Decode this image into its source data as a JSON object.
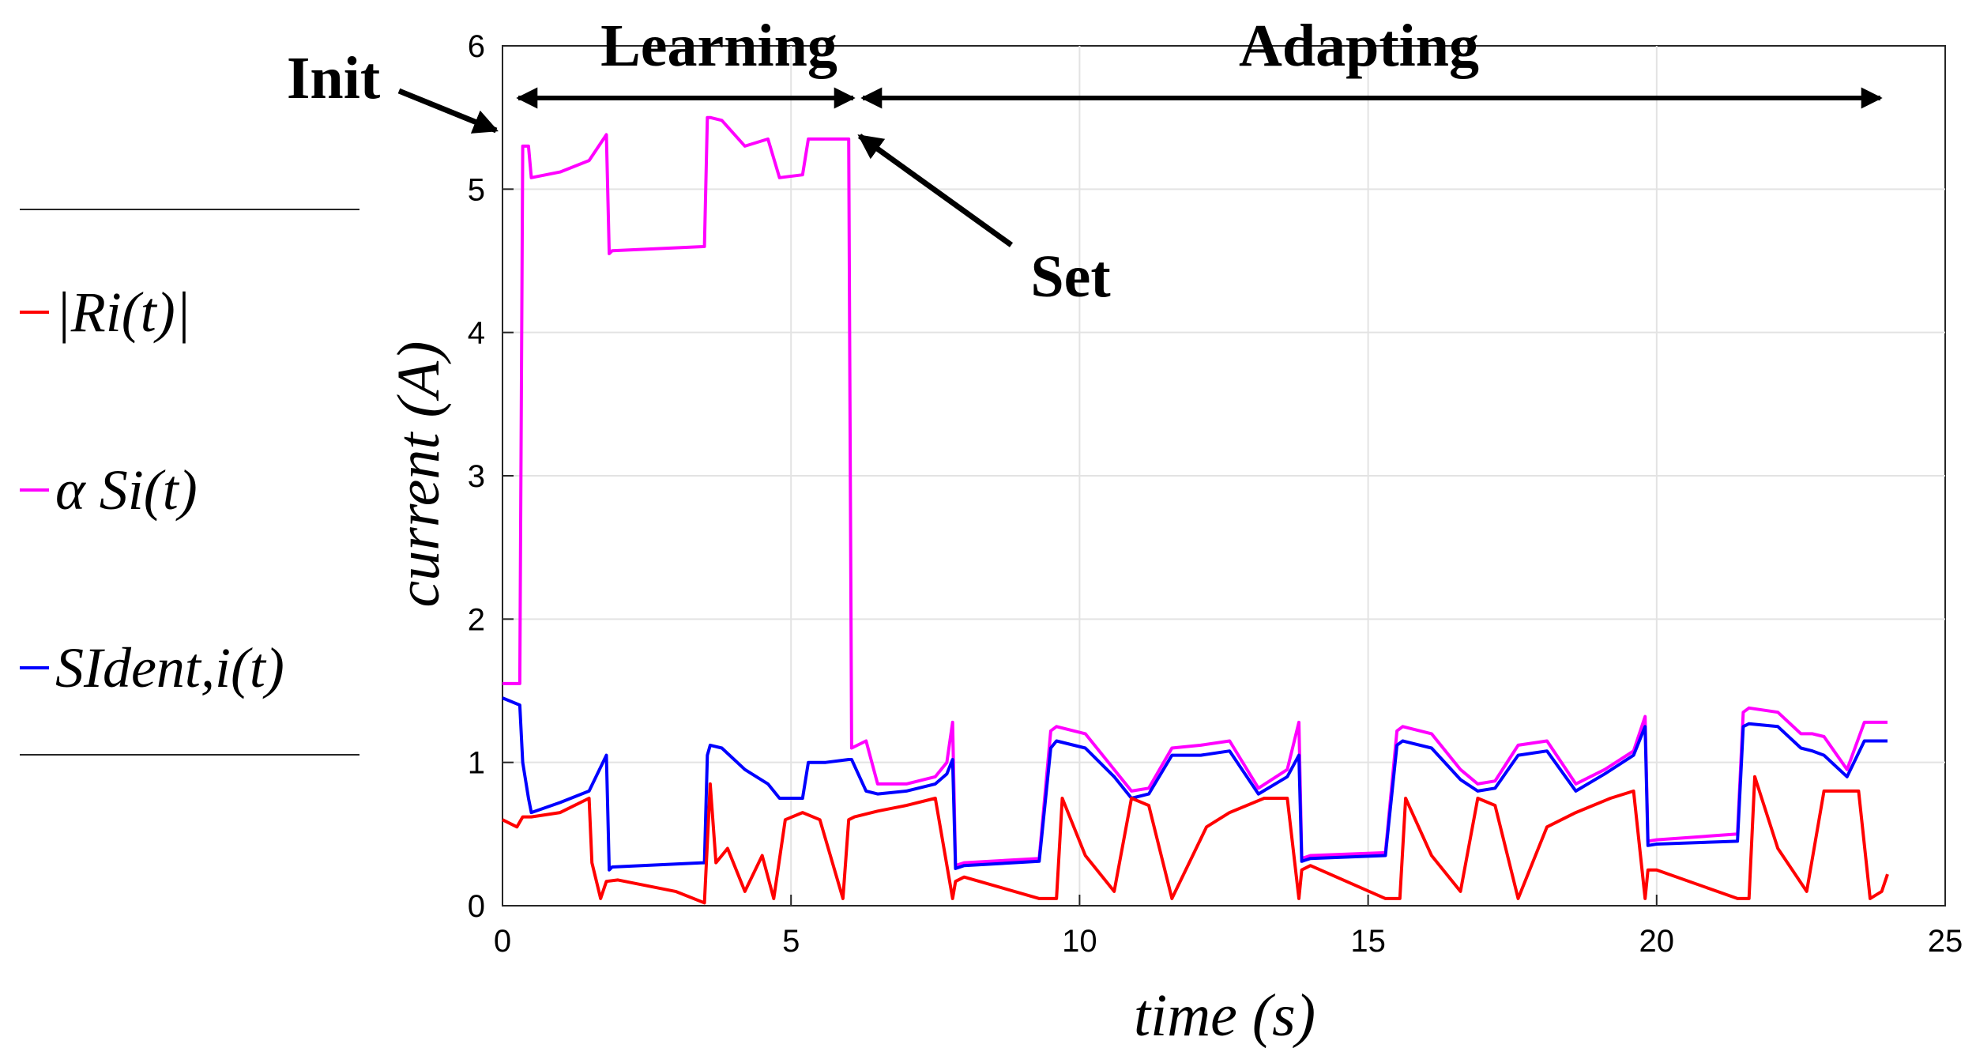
{
  "chart_data": {
    "type": "line",
    "xlabel": "time (s)",
    "ylabel": "current (A)",
    "xlim": [
      0,
      25
    ],
    "ylim": [
      0,
      6
    ],
    "xticks": [
      0,
      5,
      10,
      15,
      20,
      25
    ],
    "yticks": [
      0,
      1,
      2,
      3,
      4,
      5,
      6
    ],
    "grid": true,
    "legend_position": "left-outside",
    "annotations": {
      "init": "Init",
      "learning": "Learning",
      "adapting": "Adapting",
      "set": "Set"
    },
    "series": [
      {
        "name": "|R_i(t)|",
        "legend_label": "|Ri(t)|",
        "color": "#ff0000",
        "x": [
          0,
          0.25,
          0.35,
          0.5,
          1.0,
          1.5,
          1.55,
          1.7,
          1.8,
          2.0,
          3.0,
          3.5,
          3.6,
          3.7,
          3.9,
          4.2,
          4.5,
          4.7,
          4.9,
          5.2,
          5.5,
          5.9,
          6.0,
          6.1,
          6.5,
          7.0,
          7.5,
          7.8,
          7.85,
          8.0,
          9.3,
          9.6,
          9.7,
          10.1,
          10.6,
          10.9,
          11.2,
          11.6,
          12.2,
          12.6,
          13.2,
          13.6,
          13.8,
          13.85,
          14.0,
          15.3,
          15.55,
          15.65,
          16.1,
          16.6,
          16.9,
          17.2,
          17.6,
          18.1,
          18.6,
          19.2,
          19.6,
          19.8,
          19.85,
          20.0,
          21.4,
          21.6,
          21.7,
          22.1,
          22.6,
          22.9,
          23.2,
          23.5,
          23.7,
          23.9,
          24.0
        ],
        "values": [
          0.6,
          0.55,
          0.62,
          0.62,
          0.65,
          0.75,
          0.3,
          0.05,
          0.17,
          0.18,
          0.1,
          0.02,
          0.85,
          0.3,
          0.4,
          0.1,
          0.35,
          0.05,
          0.6,
          0.65,
          0.6,
          0.05,
          0.6,
          0.62,
          0.66,
          0.7,
          0.75,
          0.05,
          0.17,
          0.2,
          0.05,
          0.05,
          0.75,
          0.35,
          0.1,
          0.75,
          0.7,
          0.05,
          0.55,
          0.65,
          0.75,
          0.75,
          0.05,
          0.25,
          0.28,
          0.05,
          0.05,
          0.75,
          0.35,
          0.1,
          0.75,
          0.7,
          0.05,
          0.55,
          0.65,
          0.75,
          0.8,
          0.05,
          0.25,
          0.25,
          0.05,
          0.05,
          0.9,
          0.4,
          0.1,
          0.8,
          0.8,
          0.8,
          0.05,
          0.1,
          0.22
        ]
      },
      {
        "name": "alpha S_i(t)",
        "legend_label": "α Si(t)",
        "color": "#ff00ff",
        "x": [
          0,
          0.3,
          0.35,
          0.45,
          0.5,
          1.0,
          1.5,
          1.8,
          1.85,
          1.9,
          3.5,
          3.55,
          3.6,
          3.8,
          4.2,
          4.6,
          4.8,
          5.2,
          5.3,
          5.6,
          6.0,
          6.05,
          6.3,
          6.5,
          7.0,
          7.5,
          7.7,
          7.8,
          7.85,
          8.0,
          9.3,
          9.5,
          9.6,
          10.1,
          10.6,
          10.9,
          11.2,
          11.6,
          12.1,
          12.6,
          13.1,
          13.6,
          13.8,
          13.85,
          14.0,
          15.3,
          15.5,
          15.6,
          16.1,
          16.6,
          16.9,
          17.2,
          17.6,
          18.1,
          18.6,
          19.1,
          19.6,
          19.8,
          19.85,
          20.0,
          21.4,
          21.5,
          21.6,
          22.1,
          22.5,
          22.7,
          22.9,
          23.3,
          23.6,
          23.9,
          24.0
        ],
        "values": [
          1.55,
          1.55,
          5.3,
          5.3,
          5.08,
          5.12,
          5.2,
          5.38,
          4.55,
          4.57,
          4.6,
          5.5,
          5.5,
          5.48,
          5.3,
          5.35,
          5.08,
          5.1,
          5.35,
          5.35,
          5.35,
          1.1,
          1.15,
          0.85,
          0.85,
          0.9,
          1.0,
          1.28,
          0.28,
          0.3,
          0.33,
          1.22,
          1.25,
          1.2,
          0.95,
          0.8,
          0.82,
          1.1,
          1.12,
          1.15,
          0.82,
          0.95,
          1.28,
          0.33,
          0.35,
          0.37,
          1.22,
          1.25,
          1.2,
          0.95,
          0.85,
          0.87,
          1.12,
          1.15,
          0.85,
          0.95,
          1.08,
          1.32,
          0.45,
          0.46,
          0.5,
          1.35,
          1.38,
          1.35,
          1.2,
          1.2,
          1.18,
          0.95,
          1.28,
          1.28,
          1.28
        ]
      },
      {
        "name": "S_Ident,i(t)",
        "legend_label": "SIdent,i(t)",
        "color": "#0000ff",
        "x": [
          0,
          0.3,
          0.35,
          0.45,
          0.5,
          1.0,
          1.5,
          1.8,
          1.85,
          1.9,
          3.5,
          3.55,
          3.6,
          3.8,
          4.2,
          4.6,
          4.8,
          5.2,
          5.3,
          5.6,
          6.0,
          6.05,
          6.3,
          6.5,
          7.0,
          7.5,
          7.7,
          7.8,
          7.85,
          8.0,
          9.3,
          9.5,
          9.6,
          10.1,
          10.6,
          10.9,
          11.2,
          11.6,
          12.1,
          12.6,
          13.1,
          13.6,
          13.8,
          13.85,
          14.0,
          15.3,
          15.5,
          15.6,
          16.1,
          16.6,
          16.9,
          17.2,
          17.6,
          18.1,
          18.6,
          19.1,
          19.6,
          19.8,
          19.85,
          20.0,
          21.4,
          21.5,
          21.6,
          22.1,
          22.5,
          22.7,
          22.9,
          23.3,
          23.6,
          23.9,
          24.0
        ],
        "values": [
          1.45,
          1.4,
          1.0,
          0.75,
          0.65,
          0.72,
          0.8,
          1.05,
          0.25,
          0.27,
          0.3,
          1.05,
          1.12,
          1.1,
          0.95,
          0.85,
          0.75,
          0.75,
          1.0,
          1.0,
          1.02,
          1.02,
          0.8,
          0.78,
          0.8,
          0.85,
          0.92,
          1.02,
          0.26,
          0.28,
          0.31,
          1.1,
          1.15,
          1.1,
          0.9,
          0.75,
          0.78,
          1.05,
          1.05,
          1.08,
          0.78,
          0.9,
          1.05,
          0.31,
          0.33,
          0.35,
          1.12,
          1.15,
          1.1,
          0.88,
          0.8,
          0.82,
          1.05,
          1.08,
          0.8,
          0.92,
          1.05,
          1.25,
          0.42,
          0.43,
          0.45,
          1.25,
          1.27,
          1.25,
          1.1,
          1.08,
          1.05,
          0.9,
          1.15,
          1.15,
          1.15
        ]
      }
    ]
  }
}
